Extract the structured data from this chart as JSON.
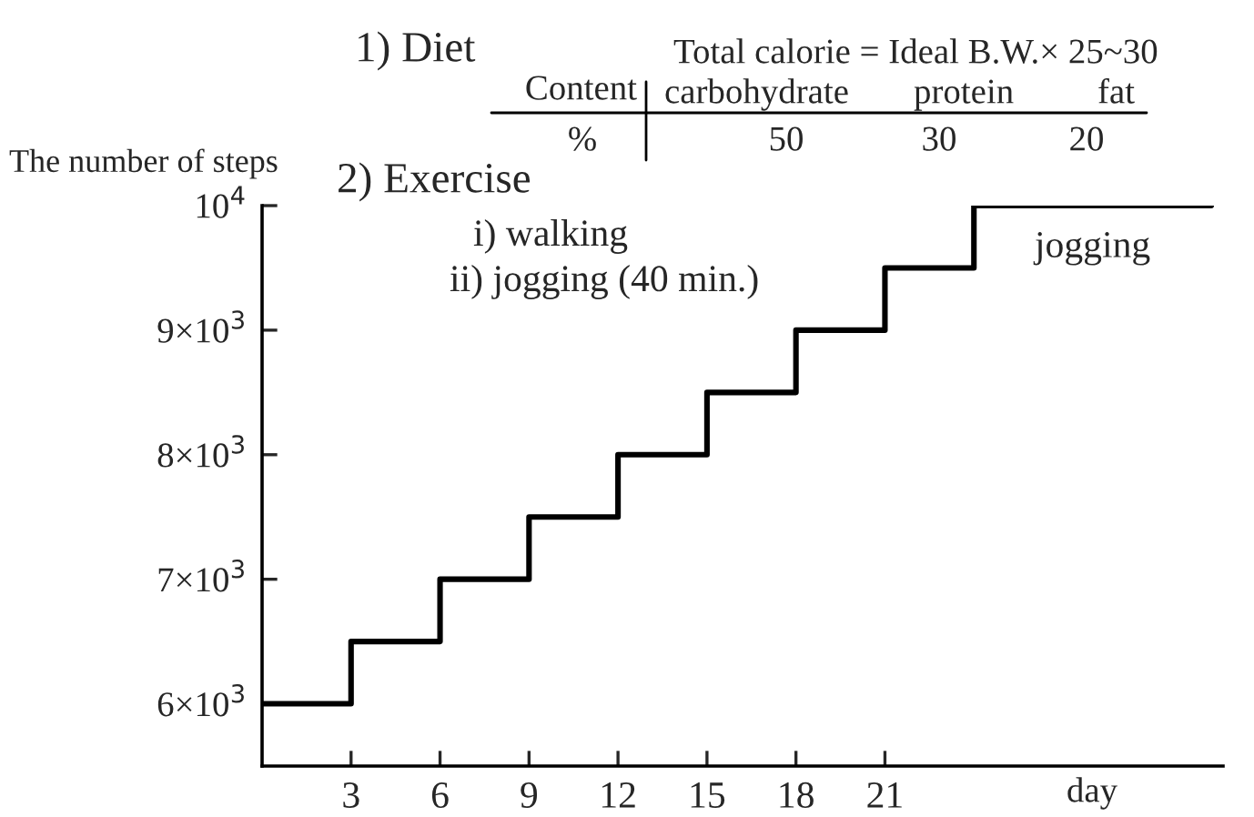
{
  "chart_data": {
    "type": "step",
    "xlabel": "day",
    "ylabel": "The number of steps",
    "x": [
      0,
      3,
      6,
      9,
      12,
      15,
      18,
      21,
      24,
      32
    ],
    "series": [
      {
        "color": "#000000",
        "values": [
          6000,
          6500,
          7000,
          7500,
          8000,
          8500,
          9000,
          9500,
          10000,
          10000
        ]
      }
    ],
    "xlim": [
      0,
      32.4
    ],
    "xticks": [
      3,
      6,
      9,
      12,
      15,
      18,
      21
    ],
    "ylim": [
      5500,
      10000
    ],
    "yticks": [
      {
        "value": 6000,
        "label": "6×10$^{3}$"
      },
      {
        "value": 7000,
        "label": "7×10$^{3}$"
      },
      {
        "value": 8000,
        "label": "8×10$^{3}$"
      },
      {
        "value": 9000,
        "label": "9×10$^{3}$"
      },
      {
        "value": 10000,
        "label": "10$^{4}$"
      }
    ],
    "grid": false,
    "legend": false,
    "marker": "none",
    "line_style": "solid",
    "annotations": [
      "1) Diet",
      "Total calorie = Ideal B.W.× 25~30",
      "Content",
      "carbohydrate",
      "protein",
      "fat",
      "%",
      "50",
      "30",
      "20",
      "2) Exercise",
      "i) walking",
      "ii) jogging (40 min.)",
      {
        "text": "jogging",
        "x": 28,
        "y": 10000
      }
    ]
  }
}
